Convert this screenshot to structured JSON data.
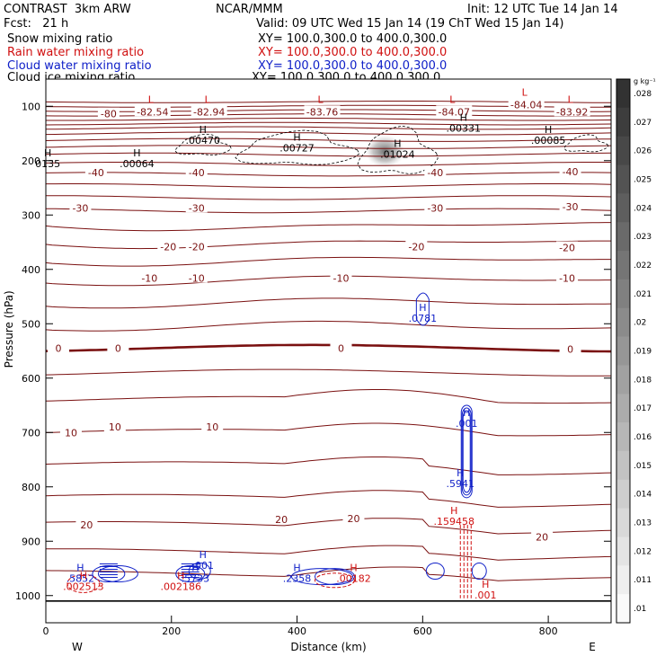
{
  "header": {
    "model": "CONTRAST  3km ARW",
    "center": "NCAR/MMM",
    "init": "Init: 12 UTC Tue 14 Jan 14",
    "fcst": "Fcst:   21 h",
    "valid": "Valid: 09 UTC Wed 15 Jan 14 (19 ChT Wed 15 Jan 14)",
    "fields": [
      {
        "name": "Snow mixing ratio",
        "xy": "XY= 100.0,300.0 to 400.0,300.0",
        "color": "#000000"
      },
      {
        "name": "Rain water mixing ratio",
        "xy": "XY= 100.0,300.0 to 400.0,300.0",
        "color": "#d01010"
      },
      {
        "name": "Cloud water mixing ratio",
        "xy": "XY= 100.0,300.0 to 400.0,300.0",
        "color": "#1020c8"
      },
      {
        "name": "Cloud ice mixing ratio",
        "xy": "XY= 100.0,300.0 to 400.0,300.0",
        "color": "#000000"
      }
    ]
  },
  "colorbar": {
    "unit": "g kg⁻¹",
    "ticks": [
      ".028",
      ".027",
      ".026",
      ".025",
      ".024",
      ".023",
      ".022",
      ".021",
      ".02",
      ".019",
      ".018",
      ".017",
      ".016",
      ".015",
      ".014",
      ".013",
      ".012",
      ".011",
      ".01"
    ]
  },
  "chart_data": {
    "type": "cross-section",
    "xlabel": "Distance (km)",
    "ylabel": "Pressure (hPa)",
    "xlim": [
      0,
      900
    ],
    "ylim": [
      1050,
      50
    ],
    "xticks": [
      "0",
      "200",
      "400",
      "600",
      "800"
    ],
    "yticks": [
      "100",
      "200",
      "300",
      "400",
      "500",
      "600",
      "700",
      "800",
      "900",
      "1000"
    ],
    "direction_labels": {
      "left": "W",
      "right": "E"
    },
    "temperature_contours": [
      {
        "value": -80,
        "labels": [
          {
            "x": 100,
            "p": 114,
            "text": "-80"
          }
        ]
      },
      {
        "value": -40,
        "labels": [
          {
            "x": 80,
            "p": 222,
            "text": "-40"
          },
          {
            "x": 240,
            "p": 222,
            "text": "-40"
          },
          {
            "x": 620,
            "p": 222,
            "text": "-40"
          },
          {
            "x": 835,
            "p": 220,
            "text": "-40"
          }
        ]
      },
      {
        "value": -30,
        "labels": [
          {
            "x": 55,
            "p": 287,
            "text": "-30"
          },
          {
            "x": 240,
            "p": 287,
            "text": "-30"
          },
          {
            "x": 620,
            "p": 287,
            "text": "-30"
          },
          {
            "x": 835,
            "p": 285,
            "text": "-30"
          }
        ]
      },
      {
        "value": -20,
        "labels": [
          {
            "x": 195,
            "p": 358,
            "text": "-20"
          },
          {
            "x": 240,
            "p": 358,
            "text": "-20"
          },
          {
            "x": 590,
            "p": 358,
            "text": "-20"
          },
          {
            "x": 830,
            "p": 360,
            "text": "-20"
          }
        ]
      },
      {
        "value": -10,
        "labels": [
          {
            "x": 165,
            "p": 416,
            "text": "-10"
          },
          {
            "x": 240,
            "p": 416,
            "text": "-10"
          },
          {
            "x": 470,
            "p": 416,
            "text": "-10"
          },
          {
            "x": 830,
            "p": 416,
            "text": "-10"
          }
        ]
      },
      {
        "value": 0,
        "labels": [
          {
            "x": 20,
            "p": 545,
            "text": "0"
          },
          {
            "x": 115,
            "p": 545,
            "text": "0"
          },
          {
            "x": 470,
            "p": 545,
            "text": "0"
          },
          {
            "x": 835,
            "p": 547,
            "text": "0"
          }
        ]
      },
      {
        "value": 10,
        "labels": [
          {
            "x": 40,
            "p": 700,
            "text": "10"
          },
          {
            "x": 110,
            "p": 690,
            "text": "10"
          },
          {
            "x": 265,
            "p": 690,
            "text": "10"
          }
        ]
      },
      {
        "value": 20,
        "labels": [
          {
            "x": 65,
            "p": 870,
            "text": "20"
          },
          {
            "x": 375,
            "p": 860,
            "text": "20"
          },
          {
            "x": 490,
            "p": 858,
            "text": "20"
          },
          {
            "x": 790,
            "p": 892,
            "text": "20"
          }
        ]
      }
    ],
    "lows": [
      {
        "x": 170,
        "p": 110,
        "text": "-82.54"
      },
      {
        "x": 260,
        "p": 110,
        "text": "-82.94"
      },
      {
        "x": 440,
        "p": 110,
        "text": "-83.76"
      },
      {
        "x": 650,
        "p": 110,
        "text": "-84.07"
      },
      {
        "x": 765,
        "p": 97,
        "text": "-84.04"
      },
      {
        "x": 838,
        "p": 110,
        "text": "-83.92"
      }
    ],
    "ice_highs": [
      {
        "x": 250,
        "p": 169,
        "text": ".00470"
      },
      {
        "x": 400,
        "p": 183,
        "text": ".00727"
      },
      {
        "x": 560,
        "p": 195,
        "text": ".01024"
      },
      {
        "x": 800,
        "p": 169,
        "text": ".00085"
      },
      {
        "x": 665,
        "p": 147,
        "text": ".00331"
      },
      {
        "x": 145,
        "p": 212,
        "text": ".00064"
      },
      {
        "x": 3,
        "p": 212,
        "text": "0135"
      }
    ],
    "cloud_water_highs": [
      {
        "x": 600,
        "p": 496,
        "text": ".0781"
      },
      {
        "x": 670,
        "p": 690,
        "text": ".001"
      },
      {
        "x": 660,
        "p": 800,
        "text": ".5941"
      },
      {
        "x": 55,
        "p": 975,
        "text": ".5852"
      },
      {
        "x": 238,
        "p": 975,
        "text": ".5733"
      },
      {
        "x": 250,
        "p": 951,
        "text": ".001"
      },
      {
        "x": 400,
        "p": 975,
        "text": ".2358"
      }
    ],
    "rain_highs": [
      {
        "x": 650,
        "p": 870,
        "text": ".159458"
      },
      {
        "x": 60,
        "p": 990,
        "text": ".002513"
      },
      {
        "x": 215,
        "p": 990,
        "text": ".002186"
      },
      {
        "x": 490,
        "p": 975,
        "text": ".00182"
      },
      {
        "x": 700,
        "p": 1005,
        "text": ".001"
      }
    ]
  }
}
